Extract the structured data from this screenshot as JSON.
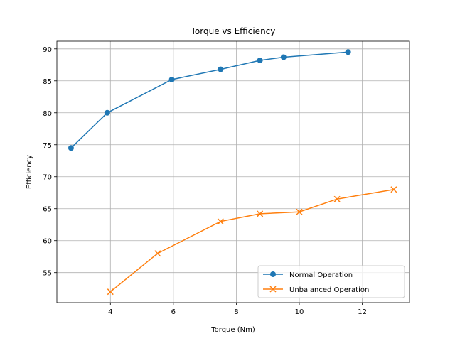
{
  "chart_data": {
    "type": "line",
    "title": "Torque vs Efficiency",
    "xlabel": "Torque (Nm)",
    "ylabel": "Efficiency",
    "xlim": [
      2.3,
      13.5
    ],
    "ylim": [
      50.3,
      91.2
    ],
    "xticks": [
      4,
      6,
      8,
      10,
      12
    ],
    "yticks": [
      55,
      60,
      65,
      70,
      75,
      80,
      85,
      90
    ],
    "grid": true,
    "legend_position": "lower-right",
    "series": [
      {
        "name": "Normal Operation",
        "color": "#1f77b4",
        "marker": "circle",
        "x": [
          2.75,
          3.9,
          5.95,
          7.5,
          8.75,
          9.5,
          11.55
        ],
        "y": [
          74.5,
          80.0,
          85.2,
          86.8,
          88.2,
          88.7,
          89.5
        ]
      },
      {
        "name": "Unbalanced Operation",
        "color": "#ff7f0e",
        "marker": "x",
        "x": [
          4.0,
          5.5,
          7.5,
          8.75,
          10.0,
          11.2,
          13.0
        ],
        "y": [
          52.0,
          58.0,
          63.0,
          64.2,
          64.5,
          66.5,
          68.0
        ]
      }
    ]
  }
}
